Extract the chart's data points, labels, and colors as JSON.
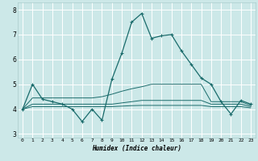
{
  "xlabel": "Humidex (Indice chaleur)",
  "xlim": [
    -0.5,
    23.5
  ],
  "ylim": [
    2.85,
    8.3
  ],
  "yticks": [
    3,
    4,
    5,
    6,
    7,
    8
  ],
  "xticks": [
    0,
    1,
    2,
    3,
    4,
    5,
    6,
    7,
    8,
    9,
    10,
    11,
    12,
    13,
    14,
    15,
    16,
    17,
    18,
    19,
    20,
    21,
    22,
    23
  ],
  "bg_color": "#cce8e8",
  "line_color": "#1a6b6b",
  "grid_color": "#ffffff",
  "line1_x": [
    0,
    1,
    2,
    3,
    4,
    5,
    6,
    7,
    8,
    9,
    10,
    11,
    12,
    13,
    14,
    15,
    16,
    17,
    18,
    19,
    20,
    21,
    22,
    23
  ],
  "line1_y": [
    4.0,
    5.0,
    4.4,
    4.3,
    4.2,
    4.0,
    3.5,
    4.0,
    3.55,
    5.2,
    6.25,
    7.5,
    7.85,
    6.85,
    6.95,
    7.0,
    6.35,
    5.8,
    5.25,
    5.0,
    4.3,
    3.8,
    4.35,
    4.2
  ],
  "line2_x": [
    0,
    1,
    2,
    3,
    4,
    5,
    6,
    7,
    8,
    9,
    10,
    11,
    12,
    13,
    14,
    15,
    16,
    17,
    18,
    19,
    20,
    21,
    22,
    23
  ],
  "line2_y": [
    4.0,
    4.45,
    4.45,
    4.45,
    4.45,
    4.45,
    4.45,
    4.45,
    4.5,
    4.6,
    4.72,
    4.82,
    4.9,
    5.0,
    5.0,
    5.0,
    5.0,
    5.0,
    5.0,
    4.3,
    4.3,
    4.3,
    4.3,
    4.15
  ],
  "line3_x": [
    0,
    1,
    2,
    3,
    4,
    5,
    6,
    7,
    8,
    9,
    10,
    11,
    12,
    13,
    14,
    15,
    16,
    17,
    18,
    19,
    20,
    21,
    22,
    23
  ],
  "line3_y": [
    4.0,
    4.2,
    4.2,
    4.2,
    4.2,
    4.2,
    4.2,
    4.2,
    4.2,
    4.2,
    4.25,
    4.3,
    4.35,
    4.35,
    4.35,
    4.35,
    4.35,
    4.35,
    4.35,
    4.2,
    4.2,
    4.2,
    4.2,
    4.1
  ],
  "line4_x": [
    0,
    1,
    2,
    3,
    4,
    5,
    6,
    7,
    8,
    9,
    10,
    11,
    12,
    13,
    14,
    15,
    16,
    17,
    18,
    19,
    20,
    21,
    22,
    23
  ],
  "line4_y": [
    4.0,
    4.1,
    4.1,
    4.1,
    4.1,
    4.1,
    4.1,
    4.1,
    4.1,
    4.1,
    4.12,
    4.14,
    4.15,
    4.15,
    4.15,
    4.15,
    4.15,
    4.15,
    4.15,
    4.1,
    4.1,
    4.1,
    4.1,
    4.05
  ]
}
